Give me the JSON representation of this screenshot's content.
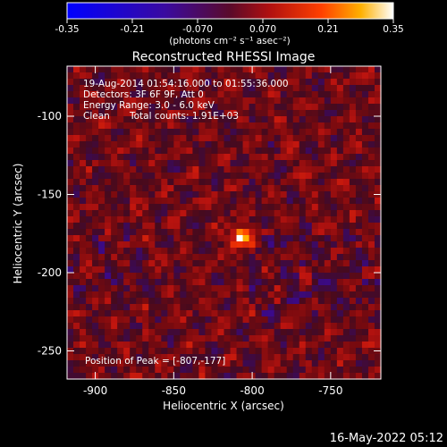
{
  "chart_data": {
    "type": "heatmap",
    "title": "Reconstructed RHESSI Image",
    "xlabel": "Heliocentric X (arcsec)",
    "ylabel": "Heliocentric Y (arcsec)",
    "xlim": [
      -918,
      -718
    ],
    "ylim": [
      -268,
      -68
    ],
    "x_ticks": [
      "-900",
      "-850",
      "-800",
      "-750"
    ],
    "x_tick_values": [
      -900,
      -850,
      -800,
      -750
    ],
    "y_ticks": [
      "-100",
      "-150",
      "-200",
      "-250"
    ],
    "y_tick_values": [
      -100,
      -150,
      -200,
      -250
    ],
    "colorbar": {
      "ticks": [
        "-0.35",
        "-0.21",
        "-0.070",
        "0.070",
        "0.21",
        "0.35"
      ],
      "tick_values": [
        -0.35,
        -0.21,
        -0.07,
        0.07,
        0.21,
        0.35
      ],
      "unit_label": "(photons cm⁻² s⁻¹ asec⁻²)",
      "range": [
        -0.35,
        0.35
      ]
    },
    "annotations": {
      "time_range": "19-Aug-2014 01:54:16.000 to 01:55:36.000",
      "detectors": "Detectors: 3F 6F 9F, Att 0",
      "energy": "Energy Range: 3.0 - 6.0 keV",
      "clean": "Clean",
      "counts": "Total counts: 1.91E+03",
      "peak": "Position of Peak = [-807,-177]"
    },
    "peak": {
      "x": -807,
      "y": -177,
      "value": 0.35
    },
    "footer_date": "16-May-2022 05:12"
  }
}
